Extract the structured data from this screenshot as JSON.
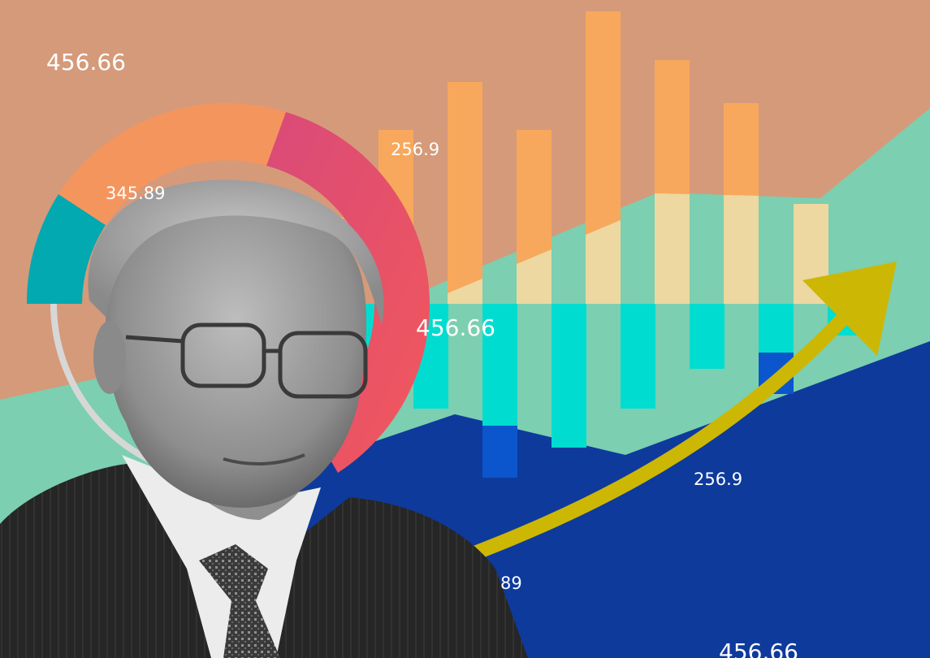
{
  "image": {
    "labels": {
      "top_left": "456.66",
      "donut": "345.89",
      "bar_top": "256.9",
      "center": "456.66",
      "arrow": "256.9",
      "bottom_partial": "89",
      "bottom_right": "456.66"
    },
    "colors": {
      "background": "#d59a7a",
      "teal_area": "#7ccfb0",
      "navy_area": "#0e3a9c",
      "bar_orange": "#f8a85c",
      "bar_cream": "#ecd8a0",
      "bar_cyan": "#00ddd0",
      "bar_blue": "#0b56cc",
      "arrow_yellow": "#cdb705",
      "donut_teal": "#02a9b0",
      "donut_orange": "#f5955e",
      "donut_pink": "#d94a79",
      "donut_red": "#f2585a",
      "donut_gray": "#d7d7d7"
    }
  }
}
